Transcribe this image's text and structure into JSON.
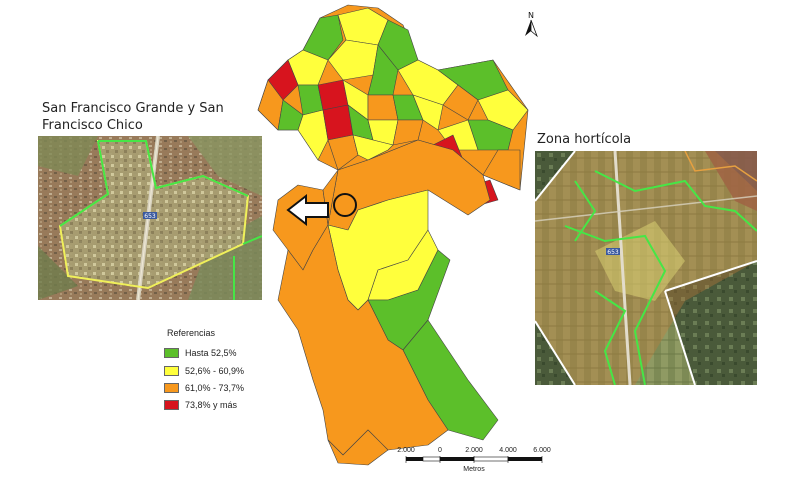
{
  "insets": {
    "left_title": "San Francisco Grande y San Francisco Chico",
    "right_title": "Zona hortícola",
    "road_label_left": "653",
    "road_label_right": "653"
  },
  "north_arrow": {
    "letter": "N"
  },
  "legend": {
    "title": "Referencias",
    "items": [
      {
        "label": "Hasta 52,5%",
        "color": "#5cbf2a"
      },
      {
        "label": "52,6% - 60,9%",
        "color": "#ffff3c"
      },
      {
        "label": "61,0% - 73,7%",
        "color": "#f7981d"
      },
      {
        "label": "73,8% y más",
        "color": "#d7141e"
      }
    ]
  },
  "scale_bar": {
    "labels": [
      "2.000",
      "0",
      "2.000",
      "4.000",
      "6.000"
    ],
    "unit": "Metros"
  },
  "colors": {
    "green": "#5cbf2a",
    "yellow": "#ffff3c",
    "orange": "#f7981d",
    "red": "#d7141e",
    "inset_border_green": "#46e646",
    "inset_border_yellow": "#f0f05a"
  }
}
